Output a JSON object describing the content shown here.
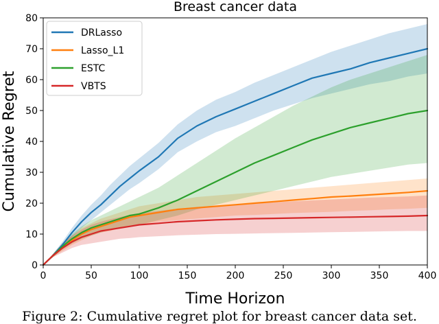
{
  "caption": "Figure 2: Cumulative regret plot for breast cancer data set.",
  "chart_data": {
    "type": "line",
    "title": "Breast cancer data",
    "xlabel": "Time Horizon",
    "ylabel": "Cumulative Regret",
    "xlim": [
      0,
      400
    ],
    "ylim": [
      0,
      80
    ],
    "xticks": [
      0,
      50,
      100,
      150,
      200,
      250,
      300,
      350,
      400
    ],
    "yticks": [
      0,
      10,
      20,
      30,
      40,
      50,
      60,
      70,
      80
    ],
    "legend_position": "top-left",
    "x": [
      0,
      10,
      20,
      30,
      40,
      50,
      60,
      70,
      80,
      90,
      100,
      120,
      140,
      160,
      180,
      200,
      220,
      240,
      260,
      280,
      300,
      320,
      340,
      360,
      380,
      400
    ],
    "series": [
      {
        "name": "DRLasso",
        "color": "#1f77b4",
        "values": [
          0,
          3,
          6.5,
          10.5,
          14,
          17,
          19.5,
          22.5,
          25.5,
          28,
          30.5,
          35,
          41,
          45,
          48,
          50.5,
          53,
          55.5,
          58,
          60.5,
          62,
          63.5,
          65.5,
          67,
          68.5,
          70
        ],
        "lower": [
          0,
          2.5,
          5.5,
          9,
          12,
          14.5,
          17,
          19.5,
          22,
          24.5,
          26.5,
          31,
          36.5,
          40,
          43,
          45,
          47.5,
          50,
          52,
          54,
          55.5,
          57,
          58.5,
          59.5,
          61,
          62
        ],
        "upper": [
          0,
          3.5,
          7.5,
          12,
          16,
          19.5,
          22.5,
          26,
          29,
          32,
          34.5,
          39.5,
          45.5,
          50,
          53.5,
          56,
          59,
          61.5,
          64,
          66.5,
          69,
          71,
          73,
          75,
          76.5,
          78
        ]
      },
      {
        "name": "Lasso_L1",
        "color": "#ff7f0e",
        "values": [
          0,
          3,
          5.5,
          8,
          10,
          11.5,
          12.5,
          13.5,
          14.5,
          15.5,
          16,
          17,
          18,
          18.5,
          19,
          19.5,
          20,
          20.5,
          21,
          21.5,
          22,
          22.3,
          22.7,
          23.1,
          23.5,
          24
        ],
        "lower": [
          0,
          2.5,
          4.5,
          6.5,
          8,
          9.5,
          10.5,
          11,
          12,
          12.5,
          13,
          14,
          14.5,
          15,
          15.5,
          16,
          16.2,
          16.5,
          16.8,
          17,
          17.2,
          17.5,
          17.7,
          18,
          18.2,
          18.5
        ],
        "upper": [
          0,
          3.5,
          6.5,
          9.5,
          12,
          13.5,
          15,
          16,
          17,
          18,
          19,
          20,
          21,
          22,
          22.5,
          23,
          23.5,
          24,
          24.5,
          25,
          25.5,
          26,
          26.5,
          27,
          27.5,
          28
        ]
      },
      {
        "name": "ESTC",
        "color": "#2ca02c",
        "values": [
          0,
          3,
          6,
          8.5,
          10.5,
          12,
          13,
          14,
          15,
          16,
          16.5,
          18.5,
          21,
          24,
          27,
          30,
          33,
          35.5,
          38,
          40.5,
          42.5,
          44.5,
          46,
          47.5,
          49,
          50
        ],
        "lower": [
          0,
          2.5,
          5,
          7,
          8.5,
          9.5,
          10.5,
          11.5,
          12,
          12.5,
          13,
          14.5,
          16,
          18,
          19.5,
          21,
          22.5,
          24,
          25.5,
          27,
          28.5,
          29.5,
          30.5,
          31.5,
          32.5,
          33
        ],
        "upper": [
          0,
          3.5,
          7,
          10,
          12.5,
          14.5,
          16,
          17.5,
          19,
          20.5,
          22,
          25,
          29,
          33,
          37,
          41,
          44.5,
          48,
          51.5,
          54.5,
          57.5,
          60,
          62,
          64,
          66,
          68
        ]
      },
      {
        "name": "VBTS",
        "color": "#d62728",
        "values": [
          0,
          3,
          5.5,
          7.5,
          9,
          10,
          11,
          11.5,
          12,
          12.5,
          13,
          13.5,
          14,
          14.3,
          14.6,
          14.8,
          15,
          15.1,
          15.2,
          15.3,
          15.4,
          15.5,
          15.6,
          15.7,
          15.8,
          16
        ],
        "lower": [
          0,
          2.5,
          4,
          5.5,
          6.5,
          7,
          7.5,
          8,
          8.5,
          8.7,
          9,
          9.3,
          9.6,
          9.8,
          10,
          10.1,
          10.2,
          10.3,
          10.4,
          10.5,
          10.6,
          10.7,
          10.8,
          10.9,
          11,
          11
        ],
        "upper": [
          0,
          3.5,
          7,
          9.5,
          11.5,
          13,
          14,
          14.8,
          15.5,
          16.2,
          16.8,
          17.5,
          18.2,
          18.8,
          19.2,
          19.6,
          20,
          20.3,
          20.6,
          20.9,
          21.2,
          21.5,
          21.8,
          22,
          22.2,
          22.5
        ]
      }
    ]
  }
}
